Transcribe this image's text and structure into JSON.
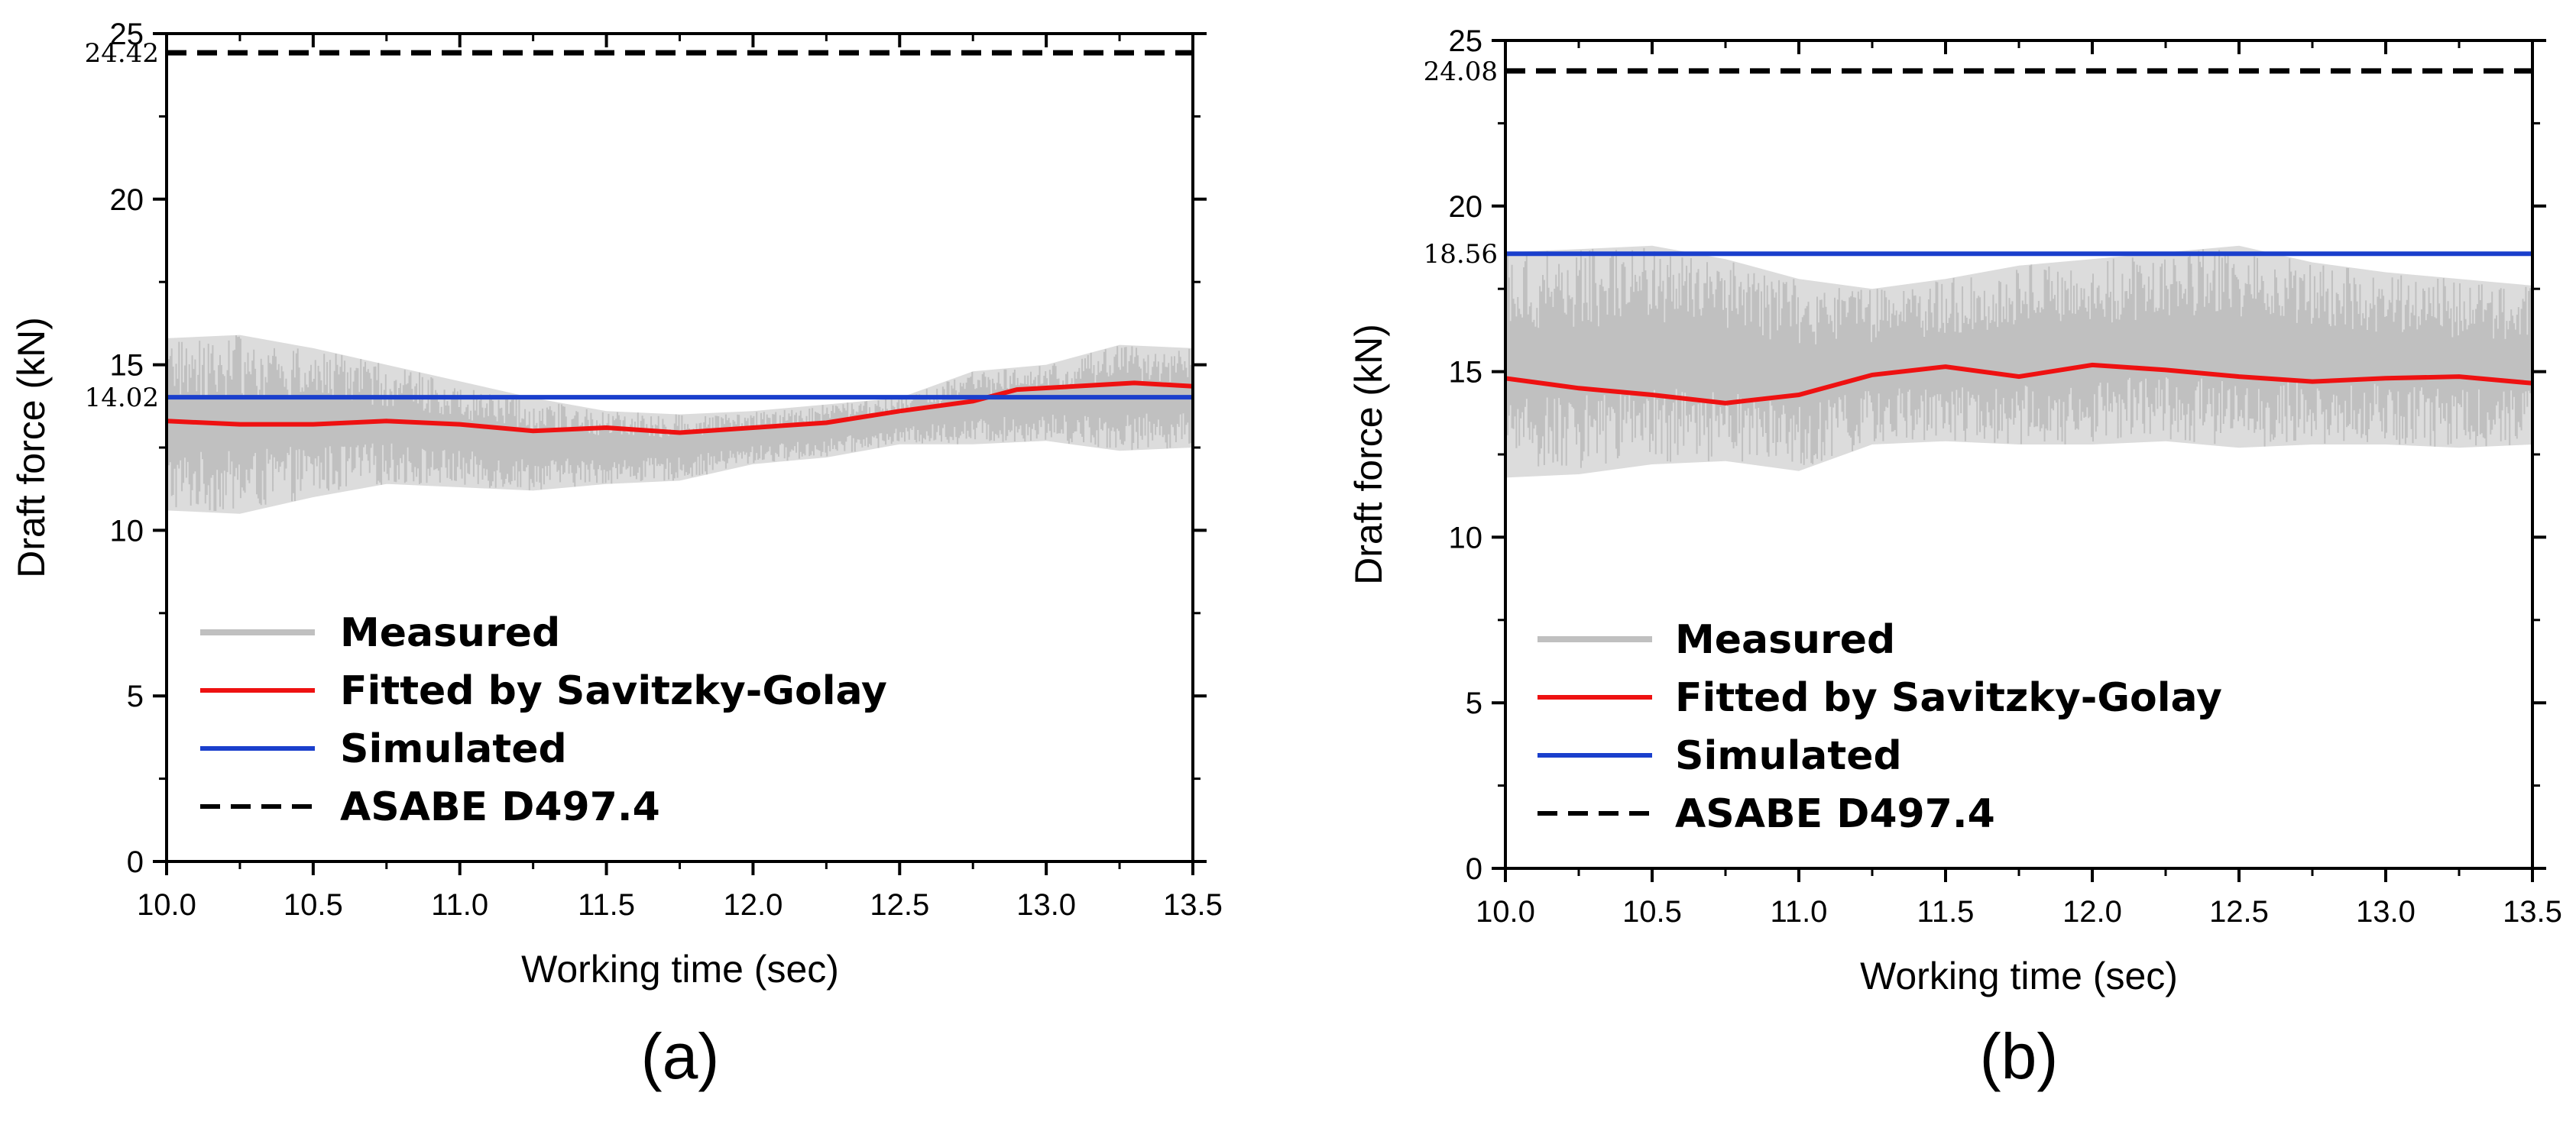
{
  "chart_data": [
    {
      "type": "line",
      "panel_label": "(a)",
      "xlabel": "Working time (sec)",
      "ylabel": "Draft force (kN)",
      "xlim": [
        10.0,
        13.5
      ],
      "ylim": [
        0,
        25
      ],
      "x_ticks": [
        "10.0",
        "10.5",
        "11.0",
        "11.5",
        "12.0",
        "12.5",
        "13.0",
        "13.5"
      ],
      "y_ticks": [
        "0",
        "5",
        "10",
        "15",
        "20",
        "25"
      ],
      "annotations": [
        {
          "text": "24.42",
          "value": 24.42
        },
        {
          "text": "14.02",
          "value": 14.02
        }
      ],
      "legend_position": "lower-left",
      "series": [
        {
          "name": "Measured",
          "color": "#c0c0c0",
          "style": "band",
          "x": [
            10.0,
            10.25,
            10.5,
            10.75,
            11.0,
            11.25,
            11.5,
            11.75,
            12.0,
            12.25,
            12.5,
            12.75,
            13.0,
            13.25,
            13.5
          ],
          "lower": [
            10.6,
            10.5,
            11.0,
            11.4,
            11.3,
            11.2,
            11.4,
            11.5,
            12.0,
            12.2,
            12.6,
            12.6,
            12.7,
            12.4,
            12.5
          ],
          "upper": [
            15.8,
            15.9,
            15.5,
            15.0,
            14.5,
            14.0,
            13.6,
            13.5,
            13.6,
            13.8,
            14.0,
            14.8,
            15.0,
            15.6,
            15.5
          ]
        },
        {
          "name": "Fitted by Savitzky-Golay",
          "color": "#ee1111",
          "style": "solid",
          "x": [
            10.0,
            10.25,
            10.5,
            10.75,
            11.0,
            11.25,
            11.5,
            11.75,
            12.0,
            12.25,
            12.5,
            12.75,
            12.9,
            13.1,
            13.3,
            13.5
          ],
          "y": [
            13.3,
            13.2,
            13.2,
            13.3,
            13.2,
            13.0,
            13.1,
            12.95,
            13.1,
            13.25,
            13.6,
            13.9,
            14.25,
            14.35,
            14.45,
            14.35
          ]
        },
        {
          "name": "Simulated",
          "color": "#1a3fcc",
          "style": "solid",
          "x": [
            10.0,
            13.5
          ],
          "y": [
            14.02,
            14.02
          ]
        },
        {
          "name": "ASABE D497.4",
          "color": "#000000",
          "style": "dashed",
          "x": [
            10.0,
            13.5
          ],
          "y": [
            24.42,
            24.42
          ]
        }
      ]
    },
    {
      "type": "line",
      "panel_label": "(b)",
      "xlabel": "Working time (sec)",
      "ylabel": "Draft force (kN)",
      "xlim": [
        10.0,
        13.5
      ],
      "ylim": [
        0,
        25
      ],
      "x_ticks": [
        "10.0",
        "10.5",
        "11.0",
        "11.5",
        "12.0",
        "12.5",
        "13.0",
        "13.5"
      ],
      "y_ticks": [
        "0",
        "5",
        "10",
        "15",
        "20",
        "25"
      ],
      "annotations": [
        {
          "text": "24.08",
          "value": 24.08
        },
        {
          "text": "18.56",
          "value": 18.56
        }
      ],
      "legend_position": "lower-left",
      "series": [
        {
          "name": "Measured",
          "color": "#c0c0c0",
          "style": "band",
          "x": [
            10.0,
            10.25,
            10.5,
            10.75,
            11.0,
            11.25,
            11.5,
            11.75,
            12.0,
            12.25,
            12.5,
            12.75,
            13.0,
            13.25,
            13.5
          ],
          "lower": [
            11.8,
            11.9,
            12.2,
            12.3,
            12.0,
            12.8,
            12.9,
            12.8,
            12.8,
            12.9,
            12.7,
            12.8,
            12.8,
            12.7,
            12.8
          ],
          "upper": [
            18.6,
            18.7,
            18.8,
            18.4,
            17.8,
            17.5,
            17.8,
            18.2,
            18.4,
            18.6,
            18.8,
            18.3,
            18.0,
            17.8,
            17.6
          ]
        },
        {
          "name": "Fitted by Savitzky-Golay",
          "color": "#ee1111",
          "style": "solid",
          "x": [
            10.0,
            10.25,
            10.5,
            10.75,
            11.0,
            11.25,
            11.5,
            11.75,
            12.0,
            12.25,
            12.5,
            12.75,
            13.0,
            13.25,
            13.5
          ],
          "y": [
            14.8,
            14.5,
            14.3,
            14.05,
            14.3,
            14.9,
            15.15,
            14.85,
            15.2,
            15.05,
            14.85,
            14.7,
            14.8,
            14.85,
            14.65
          ]
        },
        {
          "name": "Simulated",
          "color": "#1a3fcc",
          "style": "solid",
          "x": [
            10.0,
            13.5
          ],
          "y": [
            18.56,
            18.56
          ]
        },
        {
          "name": "ASABE D497.4",
          "color": "#000000",
          "style": "dashed",
          "x": [
            10.0,
            13.5
          ],
          "y": [
            24.08,
            24.08
          ]
        }
      ]
    }
  ]
}
